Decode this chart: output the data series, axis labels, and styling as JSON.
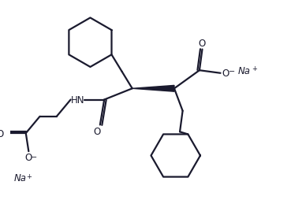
{
  "bg_color": "#ffffff",
  "line_color": "#1a1a2e",
  "line_width": 1.6,
  "text_color": "#1a1a2e",
  "font_size": 8.5,
  "figsize": [
    3.69,
    2.55
  ],
  "dpi": 100,
  "xlim": [
    0,
    10
  ],
  "ylim": [
    0,
    7
  ]
}
